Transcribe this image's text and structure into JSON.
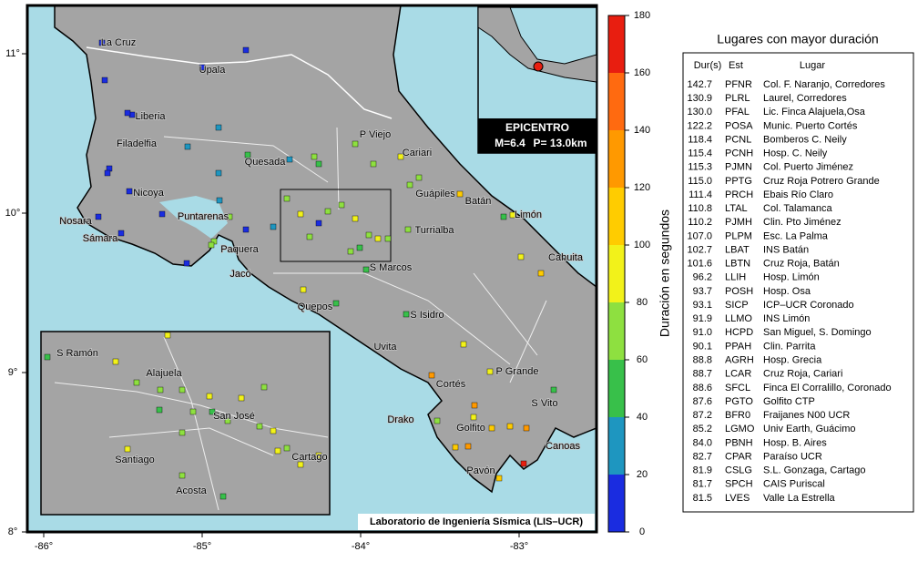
{
  "map": {
    "lon_ticks": [
      {
        "value": -86,
        "label": "-86°"
      },
      {
        "value": -85,
        "label": "-85°"
      },
      {
        "value": -84,
        "label": "-84°"
      },
      {
        "value": -83,
        "label": "-83°"
      }
    ],
    "lat_ticks": [
      {
        "value": 8,
        "label": "8°"
      },
      {
        "value": 9,
        "label": "9°"
      },
      {
        "value": 10,
        "label": "10°"
      },
      {
        "value": 11,
        "label": "11°"
      }
    ],
    "places": [
      "La Cruz",
      "Upala",
      "Liberia",
      "Filadelfia",
      "Quesada",
      "P Viejo",
      "Cariari",
      "Nicoya",
      "Guápiles",
      "Batán",
      "Limón",
      "Nosara",
      "Puntarenas",
      "Sámara",
      "Turrialba",
      "Paquera",
      "Cahuita",
      "Jacó",
      "S Marcos",
      "Quepos",
      "S Isidro",
      "Uvita",
      "P Grande",
      "Cortés",
      "S Vito",
      "Drako",
      "Golfito",
      "Canoas",
      "Pavón"
    ],
    "inset_places": [
      "S Ramón",
      "Alajuela",
      "San José",
      "Santiago",
      "Cartago",
      "Acosta"
    ],
    "credit": "Laboratorio de Ingeniería Sísmica (LIS–UCR)"
  },
  "epicenter": {
    "title": "EPICENTRO",
    "magnitude": "M=6.4",
    "depth": "P= 13.0km"
  },
  "colorbar": {
    "label": "Duración en segundos",
    "lim": [
      0,
      180
    ],
    "ticks": [
      0,
      20,
      40,
      60,
      80,
      100,
      120,
      140,
      160,
      180
    ],
    "colors": [
      "#1a2ce0",
      "#1e96c0",
      "#38c04a",
      "#8ee040",
      "#f2f21a",
      "#ffcc00",
      "#ff9900",
      "#ff6a10",
      "#e81e10"
    ]
  },
  "table": {
    "title": "Lugares con mayor duración",
    "header": [
      "Dur(s)",
      "Est",
      "Lugar"
    ],
    "rows": [
      [
        "142.7",
        "PFNR",
        "Col. F. Naranjo, Corredores"
      ],
      [
        "130.9",
        "PLRL",
        "Laurel, Corredores"
      ],
      [
        "130.0",
        "PFAL",
        "Lic. Finca Alajuela,Osa"
      ],
      [
        "122.2",
        "POSA",
        "Munic. Puerto Cortés"
      ],
      [
        "118.4",
        "PCNL",
        "Bomberos C. Neily"
      ],
      [
        "115.4",
        "PCNH",
        "Hosp. C. Neily"
      ],
      [
        "115.3",
        "PJMN",
        "Col. Puerto Jiménez"
      ],
      [
        "115.0",
        "PPTG",
        "Cruz Roja Potrero Grande"
      ],
      [
        "111.4",
        "PRCH",
        "Ebais Río Claro"
      ],
      [
        "110.8",
        "LTAL",
        "Col. Talamanca"
      ],
      [
        "110.2",
        "PJMH",
        "Clin. Pto Jiménez"
      ],
      [
        "107.0",
        "PLPM",
        "Esc. La Palma"
      ],
      [
        "102.7",
        "LBAT",
        "INS Batán"
      ],
      [
        "101.6",
        "LBTN",
        "Cruz Roja, Batán"
      ],
      [
        "96.2",
        "LLIH",
        "Hosp. Limón"
      ],
      [
        "93.7",
        "POSH",
        "Hosp. Osa"
      ],
      [
        "93.1",
        "SICP",
        "ICP–UCR Coronado"
      ],
      [
        "91.9",
        "LLMO",
        "INS Limón"
      ],
      [
        "91.0",
        "HCPD",
        "San Miguel, S. Domingo"
      ],
      [
        "90.1",
        "PPAH",
        "Clin. Parrita"
      ],
      [
        "88.8",
        "AGRH",
        "Hosp. Grecia"
      ],
      [
        "88.7",
        "LCAR",
        "Cruz Roja, Cariari"
      ],
      [
        "88.6",
        "SFCL",
        "Finca El Corralillo, Coronado"
      ],
      [
        "87.6",
        "PGTO",
        "Golfito CTP"
      ],
      [
        "87.2",
        "BFR0",
        "Fraijanes N00 UCR"
      ],
      [
        "85.2",
        "LGMO",
        "Univ Earth, Guácimo"
      ],
      [
        "84.0",
        "PBNH",
        "Hosp. B. Aires"
      ],
      [
        "82.7",
        "CPAR",
        "Paraíso UCR"
      ],
      [
        "81.9",
        "CSLG",
        "S.L. Gonzaga, Cartago"
      ],
      [
        "81.7",
        "SPCH",
        "CAIS Puriscal"
      ],
      [
        "81.5",
        "LVES",
        "Valle La Estrella"
      ]
    ]
  }
}
